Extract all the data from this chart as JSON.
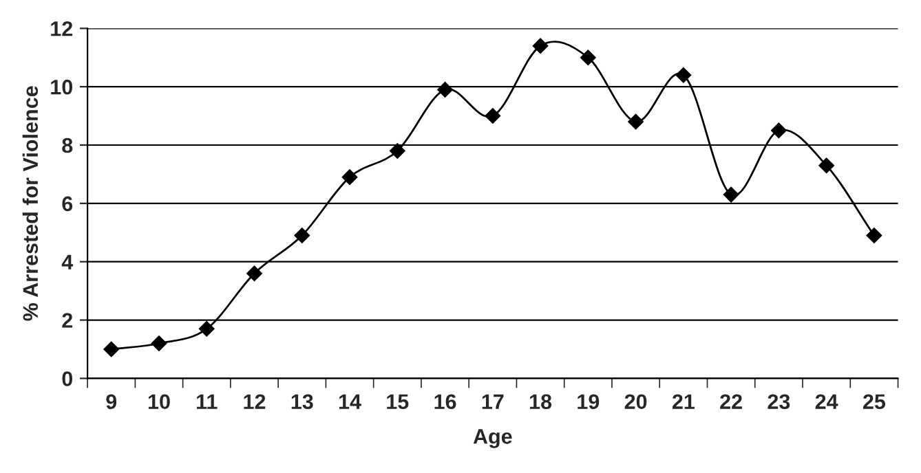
{
  "chart_data": {
    "type": "line",
    "xlabel": "Age",
    "ylabel": "% Arrested for Violence",
    "categories": [
      "9",
      "10",
      "11",
      "12",
      "13",
      "14",
      "15",
      "16",
      "17",
      "18",
      "19",
      "20",
      "21",
      "22",
      "23",
      "24",
      "25"
    ],
    "series": [
      {
        "color": "#000000",
        "values": [
          1.0,
          1.2,
          1.7,
          3.6,
          4.9,
          6.9,
          7.8,
          9.9,
          9.0,
          11.4,
          11.0,
          8.8,
          10.4,
          6.3,
          8.5,
          7.3,
          4.9
        ]
      }
    ],
    "ylim": [
      0,
      12
    ],
    "yticks": [
      0,
      2,
      4,
      6,
      8,
      10,
      12
    ],
    "grid": "y",
    "marker": "diamond",
    "line_style": "solid",
    "legend": false
  }
}
